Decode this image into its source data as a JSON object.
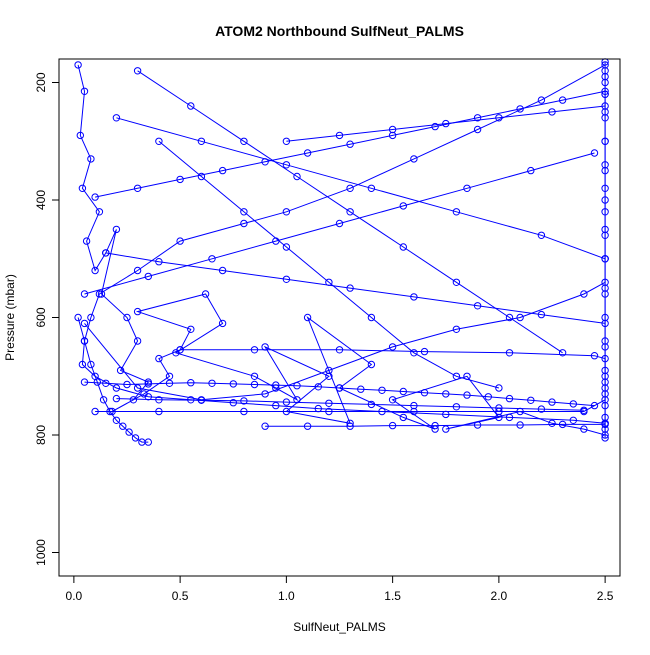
{
  "chart_data": {
    "type": "line",
    "title": "ATOM2 Northbound SulfNeut_PALMS",
    "xlabel": "SulfNeut_PALMS",
    "ylabel": "Pressure (mbar)",
    "xlim": [
      -0.07,
      2.57
    ],
    "ylim": [
      1040,
      160
    ],
    "y_reversed": true,
    "x_ticks": [
      "0.0",
      "0.5",
      "1.0",
      "1.5",
      "2.0",
      "2.5"
    ],
    "y_ticks": [
      "200",
      "400",
      "600",
      "800",
      "1000"
    ],
    "grid": false,
    "legend": "none",
    "color": "#0000ff",
    "markers": "open-circle",
    "series": [
      {
        "x": [
          0.02,
          0.05,
          0.03,
          0.08,
          0.04,
          0.12,
          0.06,
          0.1,
          0.15,
          0.2,
          0.13,
          0.25,
          0.3,
          0.22,
          0.35,
          0.28,
          0.18,
          0.33,
          0.45,
          0.4,
          0.5,
          0.55,
          0.3,
          0.62,
          0.7,
          0.48,
          0.85,
          0.95,
          1.05,
          0.9,
          1.2,
          1.0,
          1.3,
          1.1,
          1.4,
          1.25,
          1.55,
          1.7,
          1.5,
          1.85,
          2.0,
          1.75,
          2.1,
          2.25,
          2.4,
          2.5,
          2.5,
          2.5,
          2.5,
          2.5
        ],
        "y": [
          170,
          215,
          290,
          330,
          380,
          420,
          470,
          520,
          490,
          450,
          560,
          600,
          640,
          690,
          710,
          740,
          760,
          730,
          700,
          670,
          655,
          620,
          590,
          560,
          610,
          660,
          700,
          720,
          740,
          650,
          700,
          760,
          780,
          600,
          680,
          720,
          770,
          790,
          740,
          700,
          770,
          790,
          760,
          780,
          790,
          800,
          780,
          720,
          640,
          560
        ]
      },
      {
        "x": [
          0.05,
          0.3,
          0.6,
          0.9,
          1.2,
          1.5,
          1.8,
          2.1,
          2.4,
          2.5,
          2.5,
          2.5,
          2.5,
          2.5,
          2.5,
          2.5,
          2.5,
          2.5,
          2.5,
          2.5
        ],
        "y": [
          610,
          720,
          740,
          730,
          690,
          650,
          620,
          600,
          560,
          540,
          500,
          460,
          420,
          380,
          340,
          300,
          260,
          220,
          190,
          165
        ]
      },
      {
        "x": [
          2.5,
          2.2,
          1.9,
          1.6,
          1.3,
          1.0,
          0.8,
          0.5,
          0.3,
          0.12,
          0.08,
          0.05,
          0.04,
          0.1,
          0.2,
          0.35,
          0.55,
          0.75,
          0.95,
          1.15,
          1.45,
          1.75,
          2.05,
          2.35,
          2.5
        ],
        "y": [
          170,
          230,
          280,
          330,
          380,
          420,
          440,
          470,
          520,
          560,
          600,
          640,
          680,
          700,
          720,
          735,
          740,
          745,
          750,
          755,
          760,
          765,
          770,
          775,
          780
        ]
      },
      {
        "x": [
          0.1,
          0.4,
          0.8,
          1.2,
          1.6,
          2.0,
          2.4,
          2.5,
          2.5,
          2.5,
          2.5,
          2.5,
          2.5,
          2.5,
          2.5,
          2.5,
          2.5,
          2.5,
          2.5,
          2.5,
          2.5
        ],
        "y": [
          760,
          760,
          760,
          760,
          760,
          760,
          760,
          740,
          700,
          650,
          600,
          550,
          500,
          450,
          400,
          350,
          300,
          250,
          220,
          200,
          180
        ]
      },
      {
        "x": [
          0.5,
          0.85,
          1.25,
          1.65,
          2.05,
          2.45,
          2.5,
          2.5,
          2.5,
          2.5,
          2.5,
          2.5,
          2.5,
          2.5
        ],
        "y": [
          655,
          655,
          655,
          658,
          660,
          665,
          670,
          690,
          710,
          730,
          750,
          770,
          790,
          805
        ]
      },
      {
        "x": [
          0.05,
          0.15,
          0.25,
          0.35,
          0.45,
          0.55,
          0.65,
          0.75,
          0.85,
          0.95,
          1.05,
          1.15,
          1.25,
          1.35,
          1.45,
          1.55,
          1.65,
          1.75,
          1.85,
          1.95,
          2.05,
          2.15,
          2.25,
          2.35,
          2.45
        ],
        "y": [
          710,
          712,
          714,
          713,
          712,
          711,
          712,
          713,
          714,
          715,
          716,
          718,
          720,
          722,
          724,
          726,
          728,
          730,
          732,
          735,
          738,
          741,
          744,
          747,
          750
        ]
      },
      {
        "x": [
          0.2,
          0.4,
          0.6,
          0.8,
          1.0,
          1.2,
          1.4,
          1.6,
          1.8,
          2.0,
          2.2,
          2.4
        ],
        "y": [
          738,
          740,
          741,
          742,
          744,
          746,
          748,
          750,
          752,
          754,
          756,
          758
        ]
      },
      {
        "x": [
          0.9,
          1.1,
          1.3,
          1.5,
          1.7,
          1.9,
          2.1,
          2.3,
          2.5
        ],
        "y": [
          785,
          785,
          785,
          784,
          784,
          783,
          783,
          782,
          782
        ]
      },
      {
        "x": [
          0.02,
          0.05,
          0.08,
          0.11,
          0.14,
          0.17,
          0.2,
          0.23,
          0.26,
          0.29,
          0.32,
          0.35
        ],
        "y": [
          600,
          640,
          680,
          710,
          740,
          760,
          775,
          785,
          795,
          805,
          812,
          812
        ]
      },
      {
        "x": [
          0.1,
          0.3,
          0.5,
          0.7,
          0.9,
          1.1,
          1.3,
          1.5,
          1.7,
          1.9,
          2.1,
          2.3,
          2.5
        ],
        "y": [
          395,
          380,
          365,
          350,
          335,
          320,
          305,
          290,
          275,
          260,
          245,
          230,
          215
        ]
      },
      {
        "x": [
          0.05,
          0.35,
          0.65,
          0.95,
          1.25,
          1.55,
          1.85,
          2.15,
          2.45
        ],
        "y": [
          560,
          530,
          500,
          470,
          440,
          410,
          380,
          350,
          320
        ]
      },
      {
        "x": [
          0.15,
          0.4,
          0.7,
          1.0,
          1.3,
          1.6,
          1.9,
          2.2,
          2.5
        ],
        "y": [
          490,
          505,
          520,
          535,
          550,
          565,
          580,
          595,
          610
        ]
      },
      {
        "x": [
          0.2,
          0.6,
          1.0,
          1.4,
          1.8,
          2.2,
          2.5
        ],
        "y": [
          260,
          300,
          340,
          380,
          420,
          460,
          500
        ]
      },
      {
        "x": [
          0.3,
          0.55,
          0.8,
          1.05,
          1.3,
          1.55,
          1.8,
          2.05,
          2.3
        ],
        "y": [
          180,
          240,
          300,
          360,
          420,
          480,
          540,
          600,
          660
        ]
      },
      {
        "x": [
          1.0,
          1.25,
          1.5,
          1.75,
          2.0,
          2.25,
          2.5
        ],
        "y": [
          300,
          290,
          280,
          270,
          260,
          250,
          240
        ]
      },
      {
        "x": [
          0.4,
          0.6,
          0.8,
          1.0,
          1.2,
          1.4,
          1.6,
          1.8,
          2.0
        ],
        "y": [
          300,
          360,
          420,
          480,
          540,
          600,
          660,
          700,
          720
        ]
      }
    ]
  }
}
